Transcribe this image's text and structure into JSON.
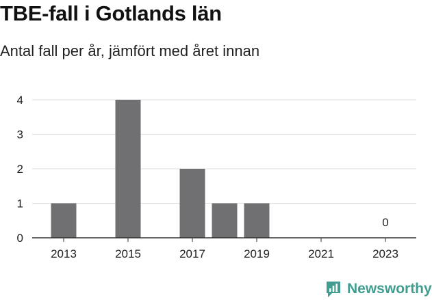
{
  "header": {
    "title": "TBE-fall i Gotlands län",
    "subtitle": "Antal fall per år, jämfört med året innan"
  },
  "brand": {
    "name": "Newsworthy",
    "icon": "newsworthy-logo-icon",
    "color": "#3f9e8f"
  },
  "colors": {
    "bar": "#707073",
    "grid": "#dddddd",
    "axis": "#333333"
  },
  "chart_data": {
    "type": "bar",
    "categories": [
      "2013",
      "2014",
      "2015",
      "2016",
      "2017",
      "2018",
      "2019",
      "2020",
      "2021",
      "2022",
      "2023"
    ],
    "x_tick_labels": [
      "2013",
      "2015",
      "2017",
      "2019",
      "2021",
      "2023"
    ],
    "values": [
      1,
      0,
      4,
      0,
      2,
      1,
      1,
      0,
      0,
      0,
      0
    ],
    "y_ticks": [
      0,
      1,
      2,
      3,
      4
    ],
    "ylim": [
      0,
      4
    ],
    "grid": true,
    "annotations": [
      {
        "category": "2023",
        "text": "0"
      }
    ],
    "title": "TBE-fall i Gotlands län",
    "subtitle": "Antal fall per år, jämfört med året innan",
    "xlabel": "",
    "ylabel": ""
  }
}
